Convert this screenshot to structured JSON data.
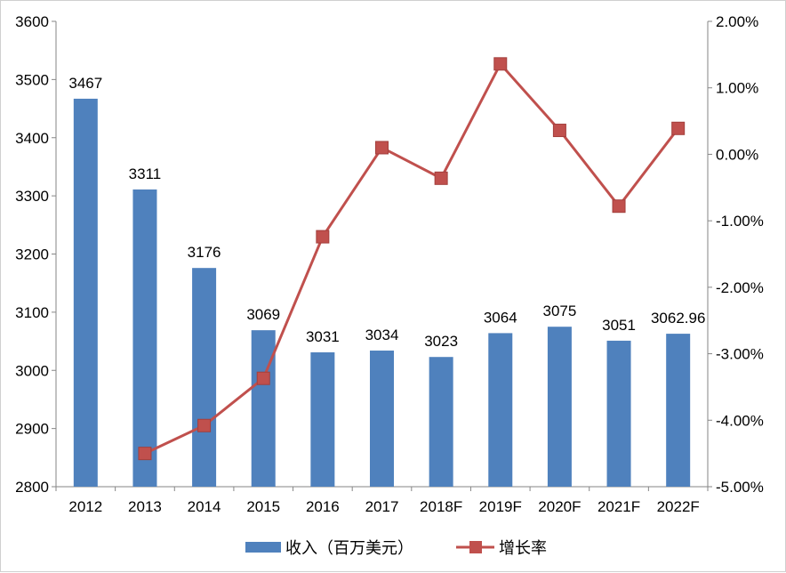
{
  "chart_data": {
    "type": "bar+line",
    "categories": [
      "2012",
      "2013",
      "2014",
      "2015",
      "2016",
      "2017",
      "2018F",
      "2019F",
      "2020F",
      "2021F",
      "2022F"
    ],
    "series": [
      {
        "name": "收入（百万美元）",
        "type": "bar",
        "axis": "left",
        "color": "#4F81BD",
        "values": [
          3467,
          3311,
          3176,
          3069,
          3031,
          3034,
          3023,
          3064,
          3075,
          3051,
          3062.96
        ],
        "labels": [
          "3467",
          "3311",
          "3176",
          "3069",
          "3031",
          "3034",
          "3023",
          "3064",
          "3075",
          "3051",
          "3062.96"
        ]
      },
      {
        "name": "增长率",
        "type": "line",
        "axis": "right",
        "color": "#C0504D",
        "marker": "square",
        "values": [
          null,
          -4.5,
          -4.08,
          -3.37,
          -1.24,
          0.1,
          -0.36,
          1.36,
          0.36,
          -0.78,
          0.39
        ]
      }
    ],
    "y_left": {
      "range": [
        2800,
        3600
      ],
      "ticks": [
        "2800",
        "2900",
        "3000",
        "3100",
        "3200",
        "3300",
        "3400",
        "3500",
        "3600"
      ]
    },
    "y_right": {
      "range": [
        -5,
        2
      ],
      "unit": "%",
      "ticks": [
        "-5.00%",
        "-4.00%",
        "-3.00%",
        "-2.00%",
        "-1.00%",
        "0.00%",
        "1.00%",
        "2.00%"
      ]
    },
    "grid": false,
    "legend": "bottom"
  }
}
